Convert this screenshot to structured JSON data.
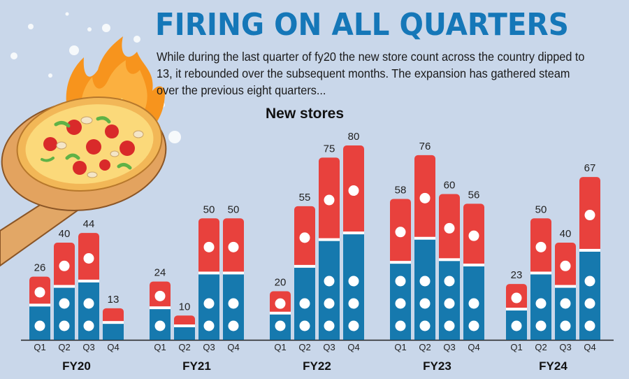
{
  "header": {
    "title": "FIRING ON ALL QUARTERS",
    "subtitle": "While during the last quarter of fy20 the new store count across the country dipped to 13, it rebounded over the subsequent months. The expansion has gathered steam over the previous eight quarters..."
  },
  "colors": {
    "background": "#c9d7ea",
    "bar_top": "#e8413d",
    "bar_bottom": "#1679ae",
    "title": "#1577b8"
  },
  "chart_data": {
    "type": "bar",
    "title": "New stores",
    "groups": [
      {
        "label": "FY20",
        "quarters": [
          "Q1",
          "Q2",
          "Q3",
          "Q4"
        ],
        "values": [
          26,
          40,
          44,
          13
        ]
      },
      {
        "label": "FY21",
        "quarters": [
          "Q1",
          "Q2",
          "Q3",
          "Q4"
        ],
        "values": [
          24,
          10,
          50,
          50
        ]
      },
      {
        "label": "FY22",
        "quarters": [
          "Q1",
          "Q2",
          "Q3",
          "Q4"
        ],
        "values": [
          20,
          55,
          75,
          80
        ]
      },
      {
        "label": "FY23",
        "quarters": [
          "Q1",
          "Q2",
          "Q3",
          "Q4"
        ],
        "values": [
          58,
          76,
          60,
          56
        ]
      },
      {
        "label": "FY24",
        "quarters": [
          "Q1",
          "Q2",
          "Q3",
          "Q4"
        ],
        "values": [
          23,
          50,
          40,
          67
        ]
      }
    ],
    "ylim": [
      0,
      80
    ],
    "xlabel": "",
    "ylabel": "",
    "grid": false,
    "legend": "none"
  }
}
